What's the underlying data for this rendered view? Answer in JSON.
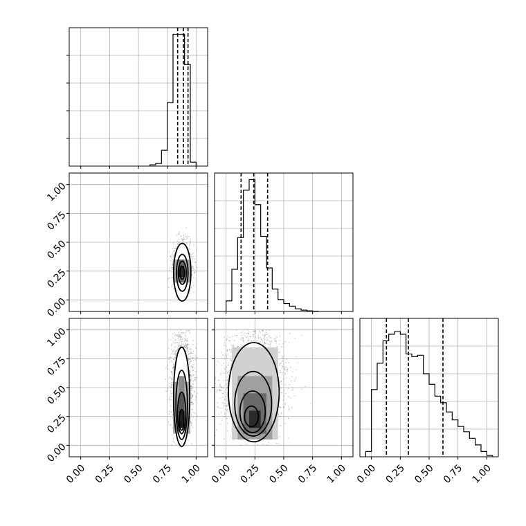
{
  "chart_data": {
    "type": "corner",
    "tick_labels": [
      "0.00",
      "0.25",
      "0.50",
      "0.75",
      "1.00"
    ],
    "tick_values": [
      0,
      0.25,
      0.5,
      0.75,
      1.0
    ],
    "xlim": [
      -0.1,
      1.1
    ],
    "ylim": [
      -0.1,
      1.1
    ],
    "grid": true,
    "quantile_line_style": "dashed",
    "histograms": [
      {
        "variable_index": 0,
        "bin_width": 0.05,
        "bins_start": [
          0.6,
          0.65,
          0.7,
          0.75,
          0.8,
          0.85,
          0.9,
          0.95
        ],
        "counts": [
          0.01,
          0.02,
          0.12,
          0.48,
          1.0,
          1.0,
          0.77,
          0.03
        ],
        "quantiles": [
          0.84,
          0.89,
          0.93
        ]
      },
      {
        "variable_index": 1,
        "bin_width": 0.05,
        "bins_start": [
          0.0,
          0.05,
          0.1,
          0.15,
          0.2,
          0.25,
          0.3,
          0.35,
          0.4,
          0.45,
          0.5,
          0.55,
          0.6,
          0.65,
          0.7,
          0.75
        ],
        "counts": [
          0.08,
          0.32,
          0.56,
          0.92,
          1.0,
          0.81,
          0.57,
          0.33,
          0.17,
          0.09,
          0.06,
          0.04,
          0.02,
          0.01,
          0.005,
          0.002
        ],
        "quantiles": [
          0.13,
          0.24,
          0.36
        ]
      },
      {
        "variable_index": 2,
        "bin_width": 0.05,
        "bins_start": [
          -0.05,
          0.0,
          0.05,
          0.1,
          0.15,
          0.2,
          0.25,
          0.3,
          0.35,
          0.4,
          0.45,
          0.5,
          0.55,
          0.6,
          0.65,
          0.7,
          0.75,
          0.8,
          0.85,
          0.9,
          0.95,
          1.0
        ],
        "counts": [
          0.04,
          0.51,
          0.71,
          0.88,
          0.93,
          0.95,
          0.93,
          0.78,
          0.76,
          0.77,
          0.63,
          0.55,
          0.46,
          0.41,
          0.34,
          0.28,
          0.23,
          0.19,
          0.14,
          0.09,
          0.04,
          0.01
        ],
        "quantiles": [
          0.13,
          0.32,
          0.62
        ]
      }
    ],
    "scatter_panels": [
      {
        "x_variable": 0,
        "y_variable": 1,
        "point_center": [
          0.88,
          0.24
        ],
        "point_spread": [
          0.04,
          0.12
        ],
        "point_count": 1400,
        "density_cells": [
          {
            "x": 0.85,
            "y": 0.2,
            "w": 0.05,
            "h": 0.1,
            "level": 0.9
          },
          {
            "x": 0.85,
            "y": 0.15,
            "w": 0.05,
            "h": 0.05,
            "level": 0.6
          },
          {
            "x": 0.85,
            "y": 0.3,
            "w": 0.05,
            "h": 0.05,
            "level": 0.6
          },
          {
            "x": 0.8,
            "y": 0.15,
            "w": 0.05,
            "h": 0.2,
            "level": 0.3
          },
          {
            "x": 0.9,
            "y": 0.15,
            "w": 0.05,
            "h": 0.2,
            "level": 0.3
          }
        ],
        "contours": [
          {
            "cx": 0.88,
            "cy": 0.24,
            "rx": 0.075,
            "ry": 0.25
          },
          {
            "cx": 0.88,
            "cy": 0.235,
            "rx": 0.05,
            "ry": 0.16
          },
          {
            "cx": 0.88,
            "cy": 0.235,
            "rx": 0.035,
            "ry": 0.1
          },
          {
            "cx": 0.88,
            "cy": 0.235,
            "rx": 0.02,
            "ry": 0.055
          }
        ]
      },
      {
        "x_variable": 0,
        "y_variable": 2,
        "point_center": [
          0.88,
          0.45
        ],
        "point_spread": [
          0.045,
          0.26
        ],
        "point_count": 1800,
        "density_cells": [
          {
            "x": 0.85,
            "y": 0.15,
            "w": 0.05,
            "h": 0.15,
            "level": 0.95
          },
          {
            "x": 0.85,
            "y": 0.3,
            "w": 0.05,
            "h": 0.15,
            "level": 0.7
          },
          {
            "x": 0.85,
            "y": 0.45,
            "w": 0.05,
            "h": 0.15,
            "level": 0.45
          },
          {
            "x": 0.8,
            "y": 0.1,
            "w": 0.05,
            "h": 0.45,
            "level": 0.3
          },
          {
            "x": 0.9,
            "y": 0.1,
            "w": 0.05,
            "h": 0.45,
            "level": 0.3
          }
        ],
        "contours": [
          {
            "cx": 0.875,
            "cy": 0.42,
            "rx": 0.07,
            "ry": 0.43
          },
          {
            "cx": 0.875,
            "cy": 0.35,
            "rx": 0.05,
            "ry": 0.3
          },
          {
            "cx": 0.875,
            "cy": 0.28,
            "rx": 0.035,
            "ry": 0.18
          },
          {
            "cx": 0.875,
            "cy": 0.22,
            "rx": 0.02,
            "ry": 0.09
          }
        ]
      },
      {
        "x_variable": 1,
        "y_variable": 2,
        "point_center": [
          0.24,
          0.45
        ],
        "point_spread": [
          0.13,
          0.26
        ],
        "point_count": 2600,
        "density_cells": [
          {
            "x": 0.2,
            "y": 0.15,
            "w": 0.1,
            "h": 0.15,
            "level": 0.9
          },
          {
            "x": 0.15,
            "y": 0.1,
            "w": 0.2,
            "h": 0.35,
            "level": 0.6
          },
          {
            "x": 0.1,
            "y": 0.05,
            "w": 0.3,
            "h": 0.55,
            "level": 0.35
          },
          {
            "x": 0.05,
            "y": 0.05,
            "w": 0.4,
            "h": 0.8,
            "level": 0.12
          }
        ],
        "contours": [
          {
            "cx": 0.24,
            "cy": 0.46,
            "rx": 0.22,
            "ry": 0.43
          },
          {
            "cx": 0.235,
            "cy": 0.36,
            "rx": 0.16,
            "ry": 0.28
          },
          {
            "cx": 0.23,
            "cy": 0.29,
            "rx": 0.11,
            "ry": 0.18
          },
          {
            "cx": 0.22,
            "cy": 0.25,
            "rx": 0.06,
            "ry": 0.09
          }
        ]
      }
    ]
  }
}
